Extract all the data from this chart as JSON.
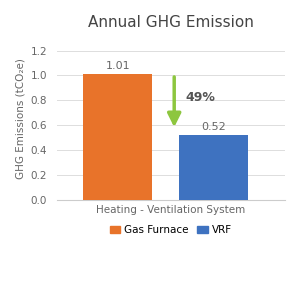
{
  "title": "Annual GHG Emission",
  "categories": [
    "Gas Furnace",
    "VRF"
  ],
  "values": [
    1.01,
    0.52
  ],
  "bar_colors": [
    "#E8732A",
    "#3E72C0"
  ],
  "xlabel": "Heating - Ventilation System",
  "ylabel": "GHG Emissions (tCO₂e)",
  "ylim": [
    0,
    1.3
  ],
  "yticks": [
    0.0,
    0.2,
    0.4,
    0.6,
    0.8,
    1.0,
    1.2
  ],
  "bar_width": 0.32,
  "bar_labels": [
    "1.01",
    "0.52"
  ],
  "arrow_label": "49%",
  "arrow_color": "#8DC63F",
  "background_color": "#FFFFFF",
  "legend_labels": [
    "Gas Furnace",
    "VRF"
  ],
  "title_fontsize": 11,
  "label_fontsize": 7.5,
  "tick_fontsize": 7.5,
  "bar_label_fontsize": 8,
  "arrow_label_fontsize": 9
}
